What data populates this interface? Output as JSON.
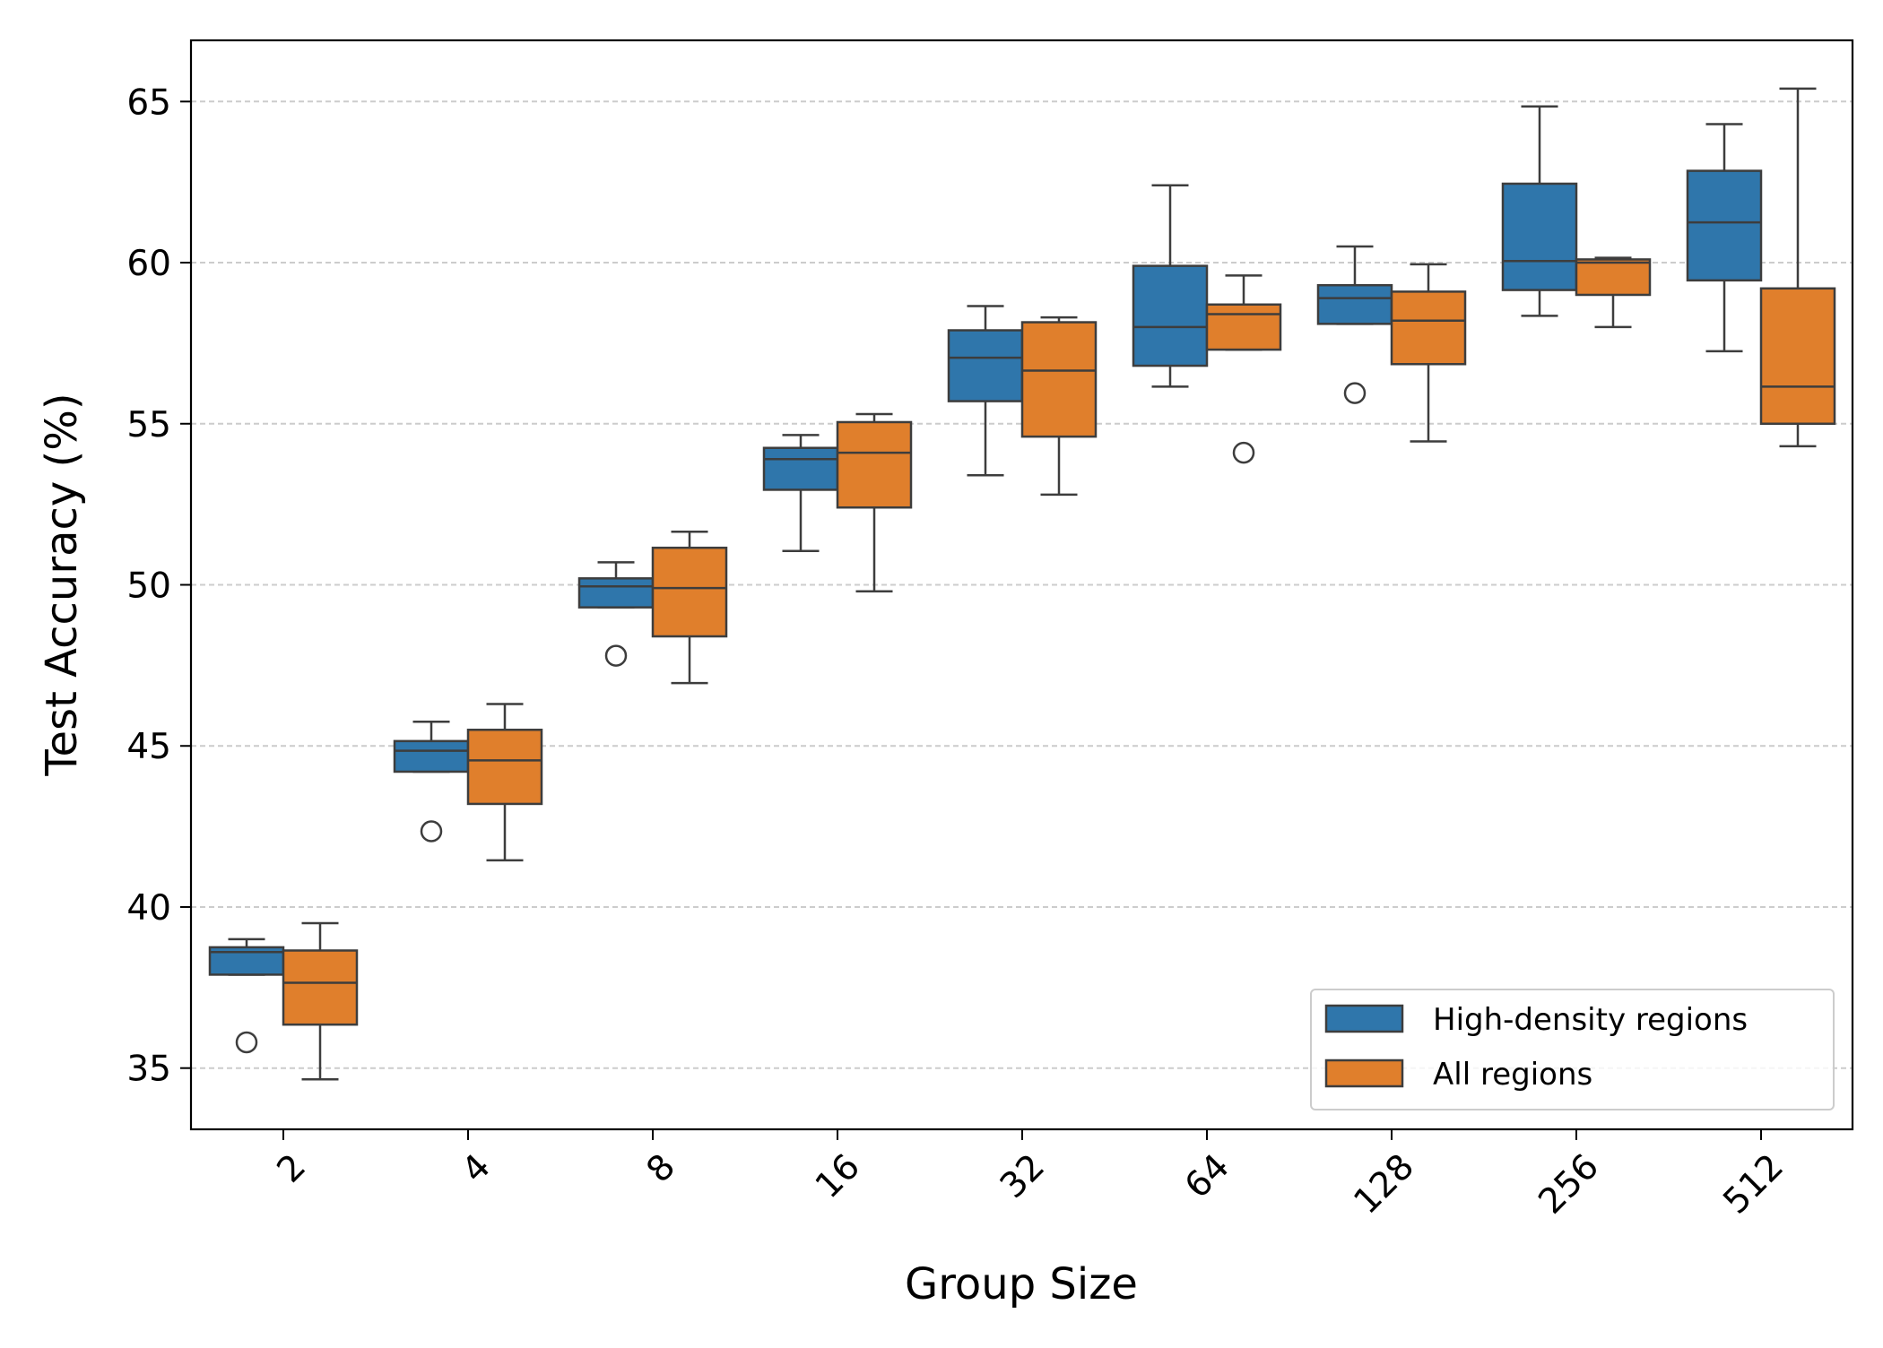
{
  "chart_data": {
    "type": "box",
    "title": "",
    "xlabel": "Group Size",
    "ylabel": "Test Accuracy (%)",
    "ylim": [
      33.1,
      66.9
    ],
    "yticks": [
      35,
      40,
      45,
      50,
      55,
      60,
      65
    ],
    "ytick_labels": [
      "35",
      "40",
      "45",
      "50",
      "55",
      "60",
      "65"
    ],
    "categories": [
      "2",
      "4",
      "8",
      "16",
      "32",
      "64",
      "128",
      "256",
      "512"
    ],
    "grid": {
      "axis": "y",
      "style": "dashed",
      "visible": true
    },
    "legend": {
      "placement": "lower-right"
    },
    "series": [
      {
        "name": "High-density regions",
        "color": "#2f76ab",
        "boxes": [
          {
            "whisker_low": 37.9,
            "q1": 37.9,
            "median": 38.6,
            "q3": 38.75,
            "whisker_high": 39.0,
            "outliers": [
              35.8
            ]
          },
          {
            "whisker_low": 44.2,
            "q1": 44.2,
            "median": 44.85,
            "q3": 45.15,
            "whisker_high": 45.75,
            "outliers": [
              42.35
            ]
          },
          {
            "whisker_low": 49.3,
            "q1": 49.3,
            "median": 49.95,
            "q3": 50.2,
            "whisker_high": 50.7,
            "outliers": [
              47.8
            ]
          },
          {
            "whisker_low": 51.05,
            "q1": 52.95,
            "median": 53.9,
            "q3": 54.25,
            "whisker_high": 54.65,
            "outliers": []
          },
          {
            "whisker_low": 53.4,
            "q1": 55.7,
            "median": 57.05,
            "q3": 57.9,
            "whisker_high": 58.65,
            "outliers": []
          },
          {
            "whisker_low": 56.15,
            "q1": 56.8,
            "median": 58.0,
            "q3": 59.9,
            "whisker_high": 62.4,
            "outliers": []
          },
          {
            "whisker_low": 58.1,
            "q1": 58.1,
            "median": 58.9,
            "q3": 59.3,
            "whisker_high": 60.5,
            "outliers": [
              55.95
            ]
          },
          {
            "whisker_low": 58.35,
            "q1": 59.15,
            "median": 60.05,
            "q3": 62.45,
            "whisker_high": 64.85,
            "outliers": []
          },
          {
            "whisker_low": 57.25,
            "q1": 59.45,
            "median": 61.25,
            "q3": 62.85,
            "whisker_high": 64.3,
            "outliers": []
          }
        ]
      },
      {
        "name": "All regions",
        "color": "#e07f2c",
        "boxes": [
          {
            "whisker_low": 34.65,
            "q1": 36.35,
            "median": 37.65,
            "q3": 38.65,
            "whisker_high": 39.5,
            "outliers": []
          },
          {
            "whisker_low": 41.45,
            "q1": 43.2,
            "median": 44.55,
            "q3": 45.5,
            "whisker_high": 46.3,
            "outliers": []
          },
          {
            "whisker_low": 46.95,
            "q1": 48.4,
            "median": 49.9,
            "q3": 51.15,
            "whisker_high": 51.65,
            "outliers": []
          },
          {
            "whisker_low": 49.8,
            "q1": 52.4,
            "median": 54.1,
            "q3": 55.05,
            "whisker_high": 55.3,
            "outliers": []
          },
          {
            "whisker_low": 52.8,
            "q1": 54.6,
            "median": 56.65,
            "q3": 58.15,
            "whisker_high": 58.3,
            "outliers": []
          },
          {
            "whisker_low": 57.3,
            "q1": 57.3,
            "median": 58.4,
            "q3": 58.7,
            "whisker_high": 59.6,
            "outliers": [
              54.1
            ]
          },
          {
            "whisker_low": 54.45,
            "q1": 56.85,
            "median": 58.2,
            "q3": 59.1,
            "whisker_high": 59.95,
            "outliers": []
          },
          {
            "whisker_low": 58.0,
            "q1": 59.0,
            "median": 60.0,
            "q3": 60.1,
            "whisker_high": 60.15,
            "outliers": []
          },
          {
            "whisker_low": 54.3,
            "q1": 55.0,
            "median": 56.15,
            "q3": 59.2,
            "whisker_high": 65.4,
            "outliers": []
          }
        ]
      }
    ]
  },
  "style": {
    "grid_color": "#cccccc",
    "box_edge_color": "#3d3d3d",
    "axis_color": "#000000"
  }
}
